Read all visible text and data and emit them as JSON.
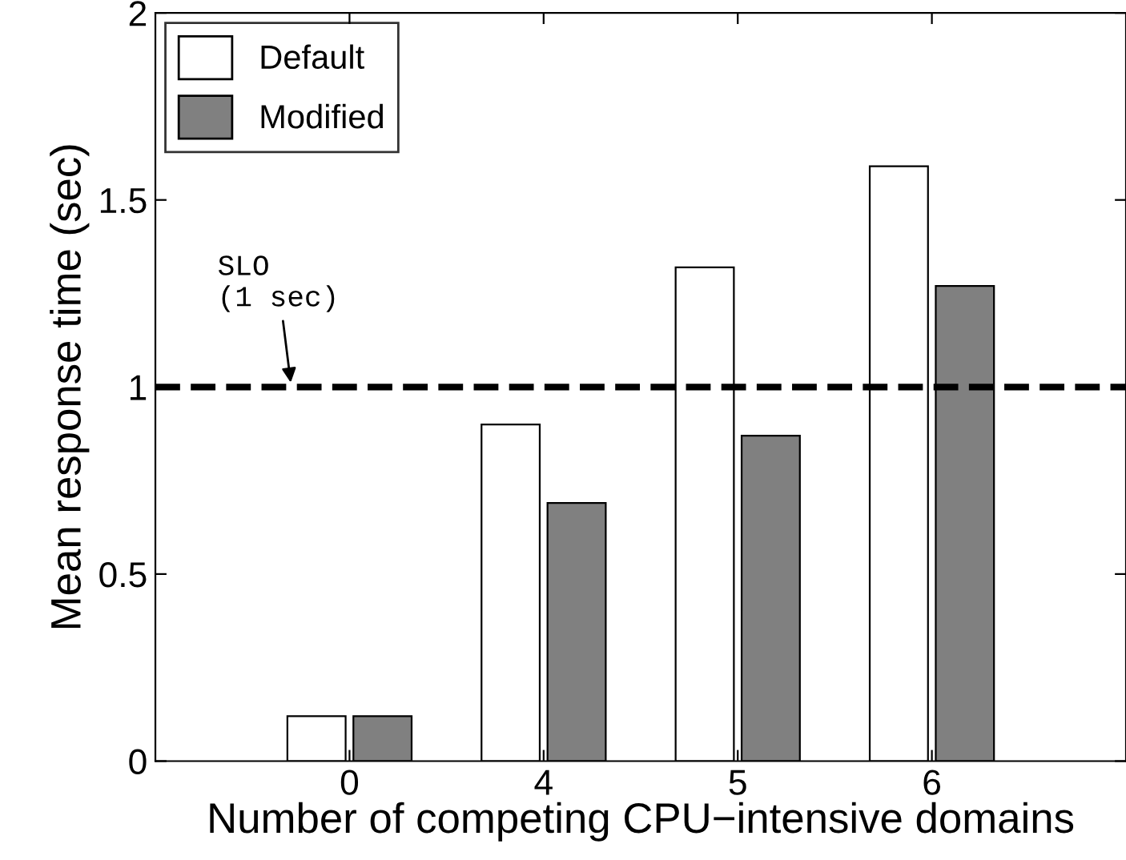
{
  "chart_data": {
    "type": "bar",
    "xlabel": "Number of competing CPU−intensive domains",
    "ylabel": "Mean response time (sec)",
    "categories": [
      "0",
      "4",
      "5",
      "6"
    ],
    "series": [
      {
        "name": "Default",
        "color": "#ffffff",
        "values": [
          0.12,
          0.9,
          1.32,
          1.59
        ]
      },
      {
        "name": "Modified",
        "color": "#808080",
        "values": [
          0.12,
          0.69,
          0.87,
          1.27
        ]
      }
    ],
    "ylim": [
      0,
      2
    ],
    "yticks": [
      0,
      0.5,
      1,
      1.5,
      2
    ],
    "grid": false,
    "legend": "top left",
    "ref_lines": [
      {
        "axis": "y",
        "value": 1,
        "label": "SLO\n(1 sec)",
        "color": "#000000",
        "line_style": "dashed"
      }
    ]
  }
}
